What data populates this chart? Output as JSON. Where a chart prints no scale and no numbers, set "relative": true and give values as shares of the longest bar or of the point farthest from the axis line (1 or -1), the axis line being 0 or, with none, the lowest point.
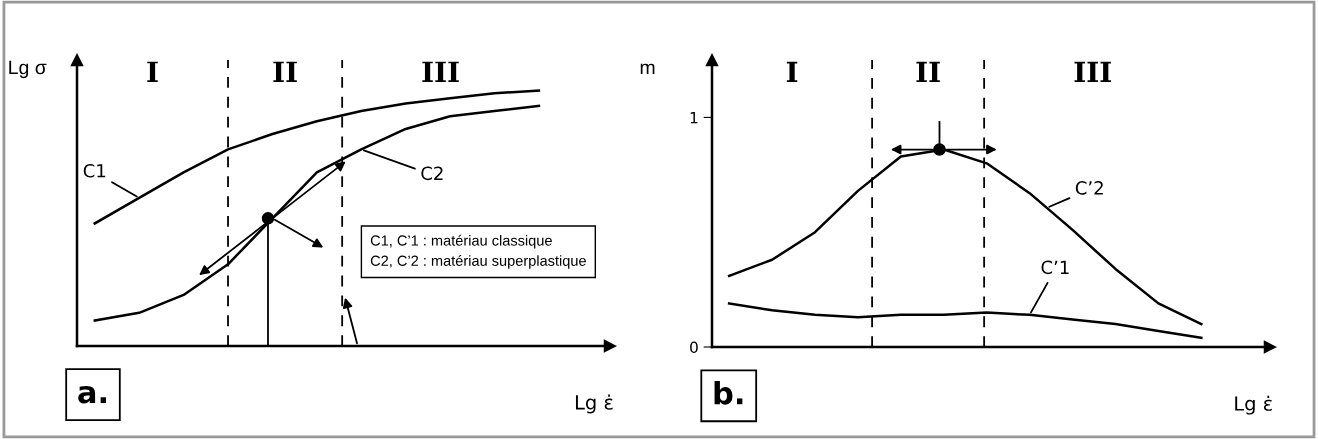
{
  "chart_data": [
    {
      "type": "line",
      "relative": true,
      "ylabel": "Lg σ",
      "xlabel": "Lg ε̇",
      "categories": [
        null,
        null,
        null,
        null,
        null,
        null,
        null,
        null,
        null,
        null,
        null
      ],
      "series": [
        {
          "name": "C1",
          "color": "#000000",
          "values": [
            0.48,
            0.58,
            0.68,
            0.77,
            0.83,
            0.88,
            0.92,
            0.95,
            0.97,
            0.99,
            1.0
          ]
        },
        {
          "name": "C2",
          "color": "#000000",
          "values": [
            0.1,
            0.13,
            0.2,
            0.32,
            0.5,
            0.68,
            0.77,
            0.85,
            0.9,
            0.92,
            0.94
          ]
        }
      ],
      "annotations": [
        "I",
        "II",
        "III",
        "C1, C’1 : matériau classique",
        "C2, C’2 : matériau superplastique",
        "a."
      ],
      "grid": false,
      "tick_labels": false,
      "line_style": "solid",
      "marker": "none"
    },
    {
      "type": "line",
      "ylabel": "m",
      "xlabel": "Lg ε̇",
      "categories": [
        null,
        null,
        null,
        null,
        null,
        null,
        null,
        null,
        null,
        null,
        null,
        null
      ],
      "ylim": [
        0,
        1.25
      ],
      "yticks": [
        0,
        1
      ],
      "series": [
        {
          "name": "C’2",
          "color": "#000000",
          "values": [
            0.31,
            0.38,
            0.5,
            0.68,
            0.83,
            0.86,
            0.8,
            0.67,
            0.51,
            0.34,
            0.19,
            0.1
          ]
        },
        {
          "name": "C’1",
          "color": "#000000",
          "values": [
            0.19,
            0.16,
            0.14,
            0.13,
            0.14,
            0.14,
            0.15,
            0.14,
            0.12,
            0.1,
            0.07,
            0.04
          ]
        }
      ],
      "annotations": [
        "I",
        "II",
        "III",
        "b."
      ],
      "grid": false,
      "tick_labels": "y",
      "line_style": "solid",
      "marker": "none"
    }
  ]
}
